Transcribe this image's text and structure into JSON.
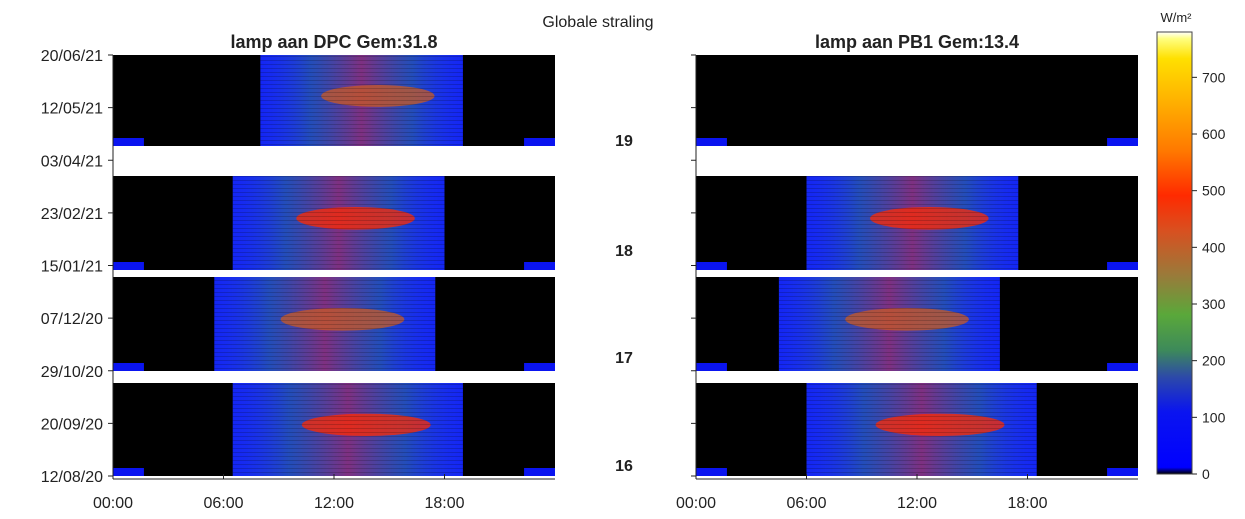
{
  "figure": {
    "supertitle": "Globale straling",
    "colorbar": {
      "unit": "W/m²",
      "ticks": [
        "0",
        "100",
        "200",
        "300",
        "400",
        "500",
        "600",
        "700"
      ],
      "range": [
        0,
        780
      ]
    },
    "week_labels": [
      "19",
      "18",
      "17",
      "16"
    ],
    "panels": [
      {
        "title": "lamp aan DPC Gem:31.8"
      },
      {
        "title": "lamp aan PB1 Gem:13.4"
      }
    ],
    "x_tick_labels": [
      "00:00",
      "06:00",
      "12:00",
      "18:00"
    ],
    "y_tick_labels": [
      "20/06/21",
      "12/05/21",
      "03/04/21",
      "23/02/21",
      "15/01/21",
      "07/12/20",
      "29/10/20",
      "20/09/20",
      "12/08/20"
    ]
  },
  "chart_data": [
    {
      "type": "heatmap",
      "title": "lamp aan DPC Gem:31.8",
      "x_axis": {
        "label": "",
        "range": [
          "00:00",
          "24:00"
        ],
        "ticks": [
          "00:00",
          "06:00",
          "12:00",
          "18:00"
        ]
      },
      "y_axis": {
        "label": "",
        "range": [
          "12/08/20",
          "20/06/21"
        ],
        "ticks": [
          "12/08/20",
          "20/09/20",
          "29/10/20",
          "07/12/20",
          "15/01/21",
          "23/02/21",
          "03/04/21",
          "12/05/21",
          "20/06/21"
        ]
      },
      "color_scale": {
        "unit": "W/m²",
        "min": 0,
        "max": 780,
        "colormap": "black-blue-green-red-yellow-white"
      },
      "bands": [
        {
          "week": "16",
          "lamp_on_start": "06:30",
          "lamp_on_end": "19:00",
          "peak_value": 420
        },
        {
          "week": "17",
          "lamp_on_start": "05:30",
          "lamp_on_end": "17:30",
          "peak_value": 300
        },
        {
          "week": "18",
          "lamp_on_start": "06:30",
          "lamp_on_end": "18:00",
          "peak_value": 480
        },
        {
          "week": "19",
          "lamp_on_start": "08:00",
          "lamp_on_end": "19:00",
          "peak_value": 350
        }
      ]
    },
    {
      "type": "heatmap",
      "title": "lamp aan PB1 Gem:13.4",
      "x_axis": {
        "label": "",
        "range": [
          "00:00",
          "24:00"
        ],
        "ticks": [
          "00:00",
          "06:00",
          "12:00",
          "18:00"
        ]
      },
      "y_axis": {
        "label": "",
        "range": [
          "12/08/20",
          "20/06/21"
        ],
        "ticks": [
          "12/08/20",
          "20/09/20",
          "29/10/20",
          "07/12/20",
          "15/01/21",
          "23/02/21",
          "03/04/21",
          "12/05/21",
          "20/06/21"
        ]
      },
      "color_scale": {
        "unit": "W/m²",
        "min": 0,
        "max": 780,
        "colormap": "black-blue-green-red-yellow-white"
      },
      "bands": [
        {
          "week": "16",
          "lamp_on_start": "06:00",
          "lamp_on_end": "18:30",
          "peak_value": 400
        },
        {
          "week": "17",
          "lamp_on_start": "04:30",
          "lamp_on_end": "16:30",
          "peak_value": 300
        },
        {
          "week": "18",
          "lamp_on_start": "06:00",
          "lamp_on_end": "17:30",
          "peak_value": 460
        },
        {
          "week": "19",
          "lamp_on_start": "",
          "lamp_on_end": "",
          "peak_value": 0
        }
      ]
    }
  ]
}
